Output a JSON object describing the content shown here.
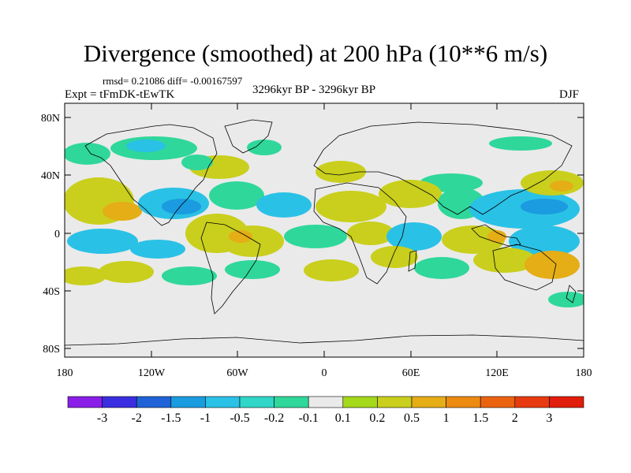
{
  "title": "Divergence (smoothed) at 200 hPa (10**6 m/s)",
  "stats": "rmsd= 0.21086 diff= -0.00167597",
  "experiment": "Expt = tFmDK-tEwTK",
  "period": "3296kyr BP - 3296kyr BP",
  "season": "DJF",
  "axes": {
    "x_ticks": [
      "180",
      "120W",
      "60W",
      "0",
      "60E",
      "120E",
      "180"
    ],
    "y_ticks": [
      "80N",
      "40N",
      "0",
      "40S",
      "80S"
    ]
  },
  "colorbar": {
    "labels": [
      "-3",
      "-2",
      "-1.5",
      "-1",
      "-0.5",
      "-0.2",
      "-0.1",
      "0.1",
      "0.2",
      "0.5",
      "1",
      "1.5",
      "2",
      "3"
    ],
    "colors": [
      "#8a1ee8",
      "#3a2fe0",
      "#1f63d6",
      "#1b9be0",
      "#2ac1e6",
      "#30d6c8",
      "#2fd79b",
      "#eaeaea",
      "#a4d81a",
      "#c9cf1c",
      "#e5ad16",
      "#ec8a12",
      "#eb6310",
      "#e83a10",
      "#e11d0b"
    ]
  },
  "colors": {
    "land_ocean_background": "#eaeaea",
    "coastline": "#000000",
    "positive_weak": "#c9cf1c",
    "positive_mid": "#e5ad16",
    "negative_weak": "#2fd79b",
    "negative_mid": "#2ac1e6",
    "negative_strong": "#1b9be0"
  }
}
